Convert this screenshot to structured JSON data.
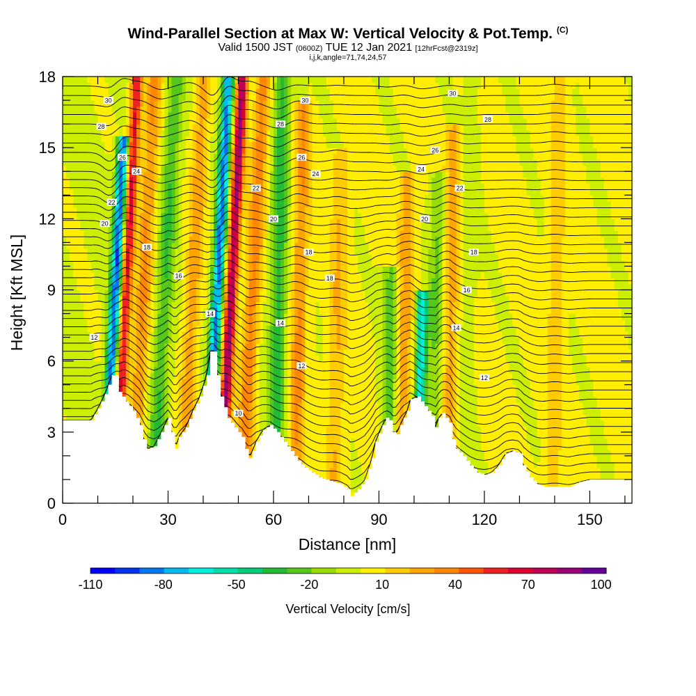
{
  "header": {
    "title_main": "Wind-Parallel Section at Max W: Vertical Velocity & Pot.Temp.",
    "title_unit": "(C)",
    "valid_a": "Valid 1500 JST",
    "valid_b": "(0600Z)",
    "valid_c": "TUE 12 Jan 2021",
    "valid_d": "[12hrFcst@2319z]",
    "ijk": "i,j,k,angle=71,74,24,57"
  },
  "chart_data": {
    "type": "heatmap",
    "xlabel": "Distance [nm]",
    "ylabel": "Height [Kft MSL]",
    "xlim": [
      0,
      162
    ],
    "ylim": [
      0,
      18
    ],
    "xticks": [
      0,
      30,
      60,
      90,
      120,
      150
    ],
    "yticks": [
      0,
      3,
      6,
      9,
      12,
      15,
      18
    ],
    "colorbar": {
      "label": "Vertical Velocity [cm/s]",
      "tick_labels": [
        "-110",
        "-80",
        "-50",
        "-20",
        "10",
        "40",
        "70",
        "100"
      ],
      "colors": [
        "#0000ff",
        "#0033ee",
        "#0077ee",
        "#00bbee",
        "#00eedd",
        "#00ddaa",
        "#00cc77",
        "#22bb33",
        "#55c61c",
        "#99dd00",
        "#ccee00",
        "#ffee00",
        "#ffcc00",
        "#ffa500",
        "#ff8800",
        "#ff5500",
        "#ee2222",
        "#dd0033",
        "#bb0055",
        "#990077",
        "#660099"
      ]
    },
    "vertical_velocity_features": [
      {
        "x": 14,
        "w": -95,
        "top": 15.5
      },
      {
        "x": 17,
        "w": 70,
        "top": 18
      },
      {
        "x": 22,
        "w": 35,
        "top": 18
      },
      {
        "x": 28,
        "w": -30,
        "top": 18
      },
      {
        "x": 36,
        "w": 30,
        "top": 18
      },
      {
        "x": 43,
        "w": -90,
        "top": 18
      },
      {
        "x": 47,
        "w": 90,
        "top": 18
      },
      {
        "x": 53,
        "w": 40,
        "top": 18
      },
      {
        "x": 61,
        "w": -35,
        "top": 18
      },
      {
        "x": 67,
        "w": 35,
        "top": 17
      },
      {
        "x": 78,
        "w": 20,
        "top": 15
      },
      {
        "x": 93,
        "w": -30,
        "top": 10
      },
      {
        "x": 97,
        "w": 25,
        "top": 14
      },
      {
        "x": 102,
        "w": -75,
        "top": 9
      },
      {
        "x": 106,
        "w": -25,
        "top": 14
      },
      {
        "x": 110,
        "w": 25,
        "top": 16
      },
      {
        "x": 115,
        "w": -10,
        "top": 18
      },
      {
        "x": 140,
        "w": 15,
        "top": 18
      }
    ],
    "terrain": [
      [
        0,
        3.5
      ],
      [
        8,
        3.5
      ],
      [
        10,
        4.0
      ],
      [
        12,
        4.6
      ],
      [
        14,
        5.4
      ],
      [
        15,
        5.4
      ],
      [
        16,
        4.7
      ],
      [
        18,
        4.3
      ],
      [
        20,
        3.9
      ],
      [
        22,
        3.3
      ],
      [
        23,
        2.7
      ],
      [
        24,
        2.3
      ],
      [
        26,
        2.4
      ],
      [
        28,
        3.0
      ],
      [
        30,
        3.6
      ],
      [
        31,
        3.0
      ],
      [
        32,
        2.3
      ],
      [
        33,
        2.8
      ],
      [
        35,
        3.2
      ],
      [
        37,
        3.9
      ],
      [
        39,
        4.5
      ],
      [
        41,
        5.4
      ],
      [
        42,
        6.4
      ],
      [
        43,
        6.4
      ],
      [
        44,
        5.4
      ],
      [
        45,
        4.5
      ],
      [
        47,
        3.6
      ],
      [
        49,
        3.2
      ],
      [
        51,
        2.8
      ],
      [
        52,
        2.3
      ],
      [
        53,
        1.9
      ],
      [
        54,
        2.2
      ],
      [
        55,
        2.6
      ],
      [
        57,
        3.1
      ],
      [
        59,
        3.3
      ],
      [
        61,
        3.0
      ],
      [
        63,
        2.6
      ],
      [
        65,
        2.2
      ],
      [
        67,
        1.8
      ],
      [
        69,
        1.5
      ],
      [
        71,
        1.3
      ],
      [
        73,
        1.1
      ],
      [
        75,
        1.0
      ],
      [
        77,
        0.9
      ],
      [
        79,
        0.8
      ],
      [
        81,
        0.6
      ],
      [
        82,
        0.3
      ],
      [
        84,
        0.6
      ],
      [
        86,
        1.0
      ],
      [
        88,
        1.9
      ],
      [
        89,
        2.6
      ],
      [
        91,
        3.3
      ],
      [
        92,
        3.6
      ],
      [
        93,
        3.5
      ],
      [
        94,
        3.0
      ],
      [
        95,
        2.9
      ],
      [
        96,
        3.3
      ],
      [
        98,
        3.9
      ],
      [
        99,
        4.4
      ],
      [
        101,
        4.5
      ],
      [
        102,
        4.3
      ],
      [
        104,
        3.9
      ],
      [
        105,
        3.7
      ],
      [
        106,
        3.2
      ],
      [
        107,
        3.6
      ],
      [
        108,
        3.8
      ],
      [
        110,
        3.4
      ],
      [
        111,
        2.7
      ],
      [
        112,
        2.3
      ],
      [
        114,
        2.0
      ],
      [
        116,
        1.6
      ],
      [
        118,
        1.3
      ],
      [
        120,
        1.2
      ],
      [
        122,
        1.3
      ],
      [
        124,
        1.6
      ],
      [
        126,
        2.1
      ],
      [
        128,
        2.2
      ],
      [
        130,
        2.1
      ],
      [
        131,
        1.6
      ],
      [
        133,
        1.1
      ],
      [
        135,
        0.8
      ],
      [
        137,
        0.7
      ],
      [
        144,
        0.7
      ],
      [
        147,
        0.9
      ],
      [
        150,
        1.0
      ],
      [
        152,
        1.0
      ],
      [
        162,
        1.0
      ]
    ],
    "theta_contour_labels": [
      "12",
      "14",
      "16",
      "18",
      "20",
      "22",
      "24",
      "26",
      "28",
      "30",
      "10"
    ]
  }
}
